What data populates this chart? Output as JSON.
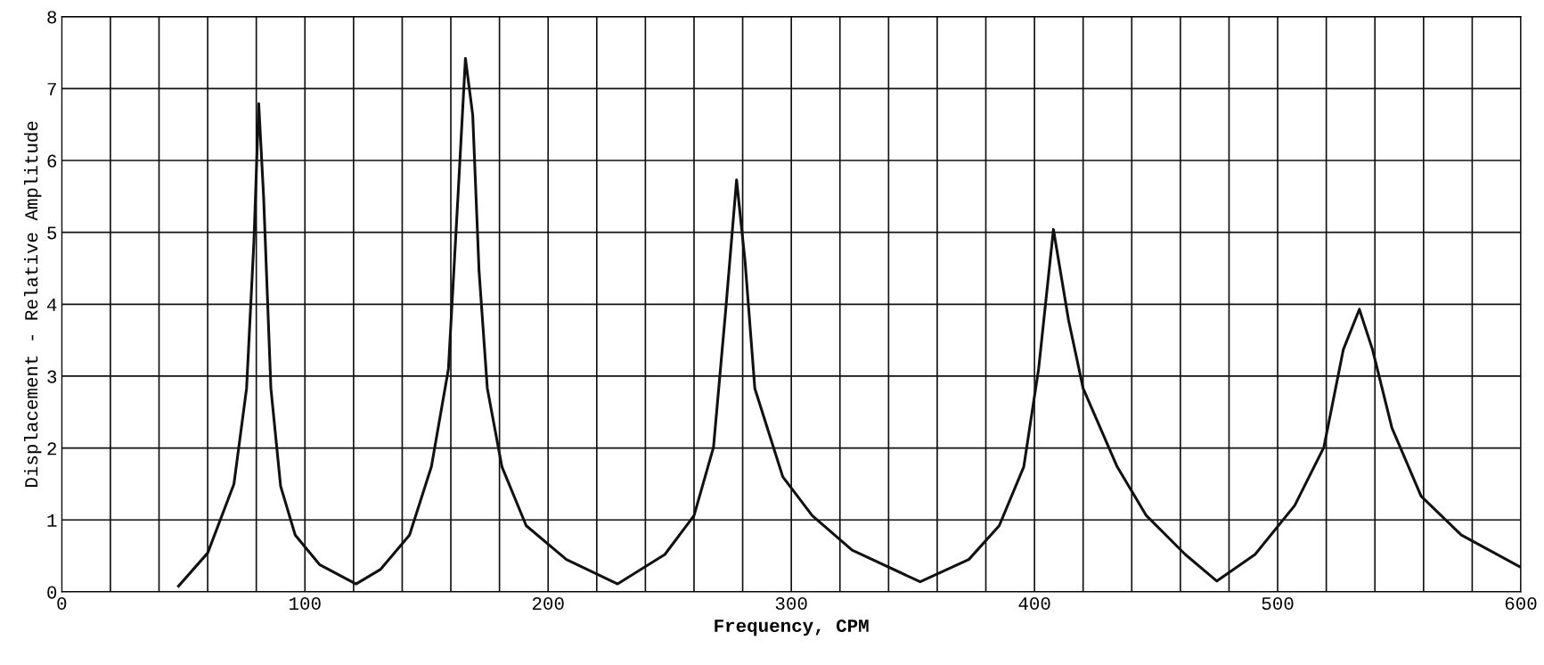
{
  "chart_data": {
    "type": "line",
    "xlabel": "Frequency, CPM",
    "ylabel": "Displacement - Relative Amplitude",
    "xlim": [
      0,
      600
    ],
    "ylim": [
      0,
      8
    ],
    "xticks": [
      0,
      {
        "value": 20,
        "label": null
      },
      {
        "value": 40,
        "label": null
      },
      {
        "value": 60,
        "label": null
      },
      {
        "value": 80,
        "label": null
      },
      100,
      {
        "value": 120,
        "label": null
      },
      {
        "value": 140,
        "label": null
      },
      {
        "value": 160,
        "label": null
      },
      {
        "value": 180,
        "label": null
      },
      200,
      {
        "value": 220,
        "label": null
      },
      {
        "value": 240,
        "label": null
      },
      {
        "value": 260,
        "label": null
      },
      {
        "value": 280,
        "label": null
      },
      300,
      {
        "value": 320,
        "label": null
      },
      {
        "value": 340,
        "label": null
      },
      {
        "value": 360,
        "label": null
      },
      {
        "value": 380,
        "label": null
      },
      400,
      {
        "value": 420,
        "label": null
      },
      {
        "value": 440,
        "label": null
      },
      {
        "value": 460,
        "label": null
      },
      {
        "value": 480,
        "label": null
      },
      500,
      {
        "value": 520,
        "label": null
      },
      {
        "value": 540,
        "label": null
      },
      {
        "value": 560,
        "label": null
      },
      {
        "value": 580,
        "label": null
      },
      600
    ],
    "yticks": [
      0,
      1,
      2,
      3,
      4,
      5,
      6,
      7,
      8
    ],
    "grid": true,
    "marker": "none",
    "line_style": "solid",
    "series": [
      {
        "color": "#111111",
        "x": [
          48,
          60,
          70.8,
          76,
          79,
          81,
          83,
          86,
          90,
          96,
          106,
          121,
          131,
          143,
          152,
          159,
          163,
          166,
          169,
          171.6,
          175,
          181,
          191,
          207.5,
          228.6,
          248,
          260,
          268,
          273,
          277.5,
          281,
          285,
          296.5,
          308.6,
          325,
          353,
          373,
          385.5,
          395.6,
          401.7,
          407.8,
          414,
          420,
          434,
          446,
          462,
          475,
          490.7,
          507,
          519,
          527,
          533.6,
          539,
          547,
          559,
          575.5,
          600
        ],
        "values": [
          0.08,
          0.54,
          1.5,
          2.83,
          4.86,
          6.79,
          5.5,
          2.83,
          1.47,
          0.79,
          0.38,
          0.11,
          0.31,
          0.79,
          1.74,
          3.1,
          5.54,
          7.42,
          6.63,
          4.46,
          2.83,
          1.74,
          0.92,
          0.45,
          0.11,
          0.52,
          1.06,
          2.01,
          3.91,
          5.73,
          4.59,
          2.83,
          1.6,
          1.06,
          0.58,
          0.14,
          0.45,
          0.92,
          1.74,
          3.1,
          5.04,
          3.78,
          2.83,
          1.74,
          1.06,
          0.52,
          0.15,
          0.52,
          1.2,
          2.01,
          3.37,
          3.93,
          3.37,
          2.28,
          1.33,
          0.79,
          0.34
        ]
      }
    ]
  }
}
